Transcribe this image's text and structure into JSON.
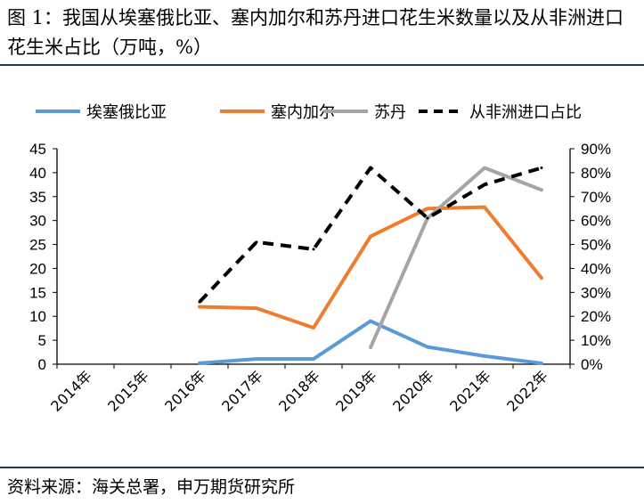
{
  "title": "图 1：我国从埃塞俄比亚、塞内加尔和苏丹进口花生米数量以及从非洲进口花生米占比（万吨，%）",
  "source": "资料来源：海关总署，申万期货研究所",
  "chart_data": {
    "type": "line",
    "categories": [
      "2014年",
      "2015年",
      "2016年",
      "2017年",
      "2018年",
      "2019年",
      "2020年",
      "2021年",
      "2022年"
    ],
    "ylim": [
      0,
      45
    ],
    "yticks": [
      "0",
      "5",
      "10",
      "15",
      "20",
      "25",
      "30",
      "35",
      "40",
      "45"
    ],
    "y2lim": [
      0,
      0.9
    ],
    "y2ticks": [
      "0%",
      "10%",
      "20%",
      "30%",
      "40%",
      "50%",
      "60%",
      "70%",
      "80%",
      "90%"
    ],
    "legend_position": "top",
    "series": [
      {
        "name": "埃塞俄比亚",
        "axis": "left",
        "color": "#5b9bd5",
        "dash": false,
        "values": [
          null,
          null,
          0.2,
          1.1,
          1.1,
          9.0,
          3.6,
          1.7,
          0.2
        ]
      },
      {
        "name": "塞内加尔",
        "axis": "left",
        "color": "#ed7d31",
        "dash": false,
        "values": [
          null,
          null,
          12.0,
          11.7,
          7.6,
          26.7,
          32.5,
          32.8,
          18.0
        ]
      },
      {
        "name": "苏丹",
        "axis": "left",
        "color": "#a5a5a5",
        "dash": false,
        "values": [
          null,
          null,
          null,
          null,
          null,
          3.5,
          30.5,
          41.0,
          36.4
        ]
      },
      {
        "name": "从非洲进口占比",
        "axis": "right",
        "color": "#000000",
        "dash": true,
        "values": [
          null,
          null,
          0.26,
          0.51,
          0.48,
          0.82,
          0.61,
          0.75,
          0.82
        ]
      }
    ]
  }
}
